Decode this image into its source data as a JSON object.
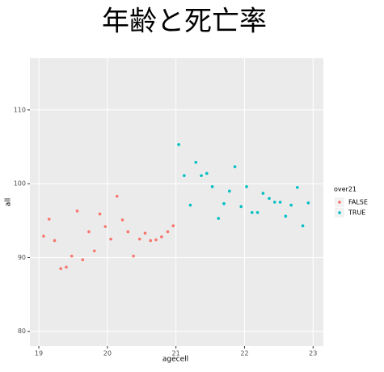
{
  "chart_data": {
    "type": "scatter",
    "title": "年齢と死亡率",
    "x_label": "agecell",
    "y_label": "all",
    "legend_title": "over21",
    "legend_position": "right",
    "grid": true,
    "xlim": [
      18.87,
      23.15
    ],
    "ylim": [
      78,
      117
    ],
    "xticks": [
      19,
      20,
      21,
      22,
      23
    ],
    "yticks": [
      80,
      90,
      100,
      110
    ],
    "series": [
      {
        "name": "FALSE",
        "color": "#f8766d",
        "x": [
          19.07,
          19.15,
          19.23,
          19.32,
          19.4,
          19.48,
          19.56,
          19.64,
          19.73,
          19.81,
          19.89,
          19.97,
          20.05,
          20.14,
          20.22,
          20.3,
          20.38,
          20.47,
          20.55,
          20.63,
          20.71,
          20.79,
          20.88,
          20.96
        ],
        "values": [
          92.9,
          95.2,
          92.3,
          88.5,
          88.7,
          90.2,
          96.3,
          89.7,
          93.5,
          90.9,
          95.9,
          94.2,
          92.5,
          98.3,
          95.1,
          93.5,
          90.2,
          92.5,
          93.3,
          92.3,
          92.4,
          92.8,
          93.5,
          94.3
        ]
      },
      {
        "name": "TRUE",
        "color": "#00bfc4",
        "x": [
          21.04,
          21.12,
          21.21,
          21.29,
          21.37,
          21.45,
          21.53,
          21.62,
          21.7,
          21.78,
          21.86,
          21.95,
          22.03,
          22.11,
          22.19,
          22.27,
          22.36,
          22.44,
          22.52,
          22.6,
          22.68,
          22.77,
          22.85,
          22.93
        ],
        "values": [
          105.3,
          101.1,
          97.1,
          102.9,
          101.1,
          101.4,
          99.6,
          95.3,
          97.3,
          99.0,
          102.3,
          96.9,
          99.6,
          96.1,
          96.1,
          98.7,
          98.0,
          97.5,
          97.5,
          95.6,
          97.1,
          99.5,
          94.3,
          97.4
        ]
      }
    ]
  }
}
